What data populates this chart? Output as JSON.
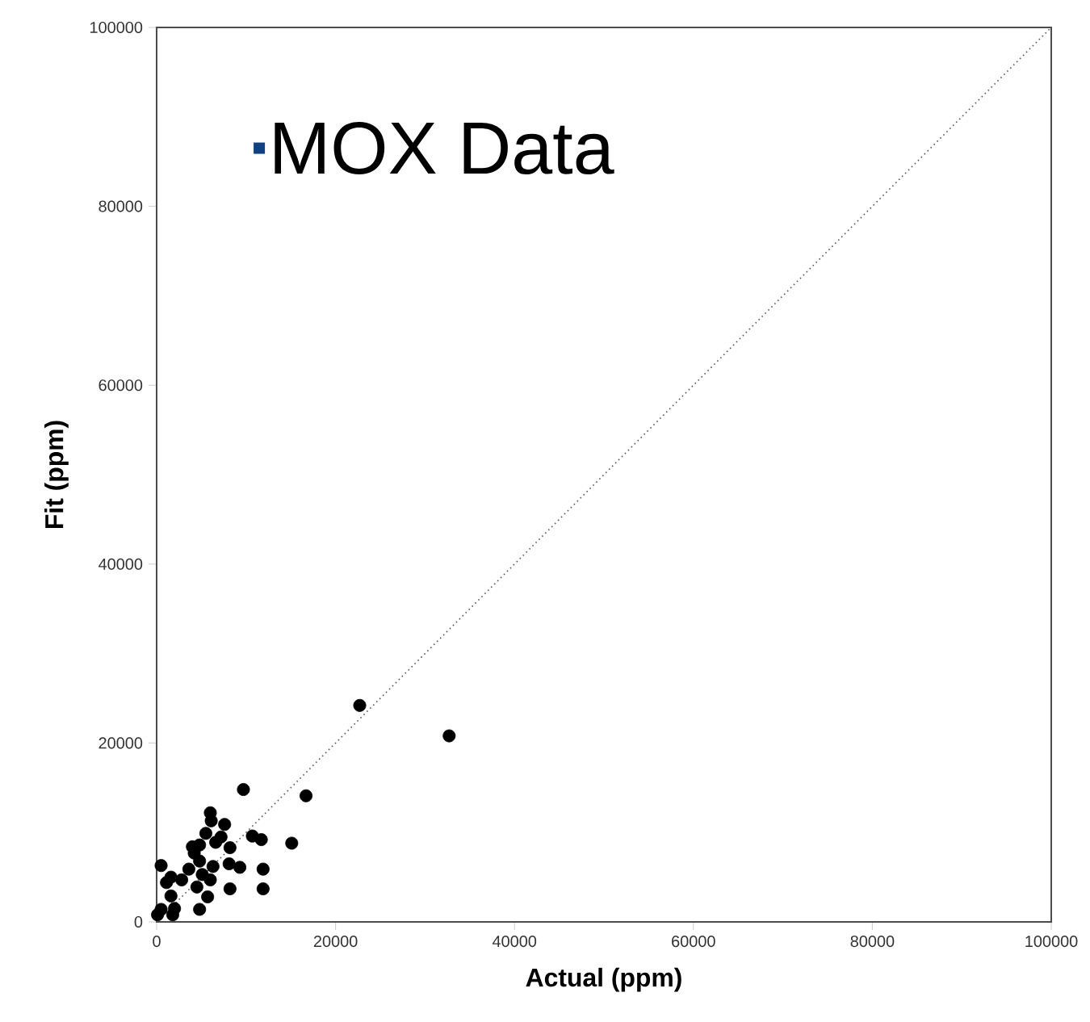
{
  "chart_data": {
    "type": "scatter",
    "xlabel": "Actual (ppm)",
    "ylabel": "Fit (ppm)",
    "annotations": [
      "MOX Data"
    ],
    "xlim": [
      0,
      100000
    ],
    "ylim": [
      0,
      100000
    ],
    "xticks": [
      0,
      20000,
      40000,
      60000,
      80000,
      100000
    ],
    "yticks": [
      0,
      20000,
      40000,
      60000,
      80000,
      100000
    ],
    "grid": false,
    "series": [
      {
        "type": "line",
        "color": "#555555",
        "line_style": "dotted",
        "marker": "none",
        "x": [
          0,
          100000
        ],
        "values": [
          0,
          100000
        ]
      },
      {
        "color": "#000000",
        "marker": "circle",
        "x": [
          22700,
          32700,
          9700,
          16700,
          6000,
          7600,
          6100,
          5500,
          7200,
          10700,
          11700,
          15100,
          4800,
          4000,
          6600,
          8200,
          500,
          4800,
          8100,
          9300,
          11900,
          1600,
          3600,
          6300,
          5100,
          2800,
          6000,
          1100,
          8200,
          11900,
          4500,
          1600,
          5700,
          500,
          2000,
          4800,
          100,
          1800,
          4200
        ],
        "values": [
          24200,
          20800,
          14800,
          14100,
          12200,
          10900,
          11300,
          9900,
          9500,
          9600,
          9200,
          8800,
          8600,
          8400,
          8900,
          8300,
          6300,
          6800,
          6500,
          6100,
          5900,
          5000,
          5900,
          6200,
          5300,
          4700,
          4700,
          4400,
          3700,
          3700,
          3900,
          2900,
          2800,
          1400,
          1500,
          1400,
          800,
          800,
          7700
        ]
      }
    ]
  }
}
